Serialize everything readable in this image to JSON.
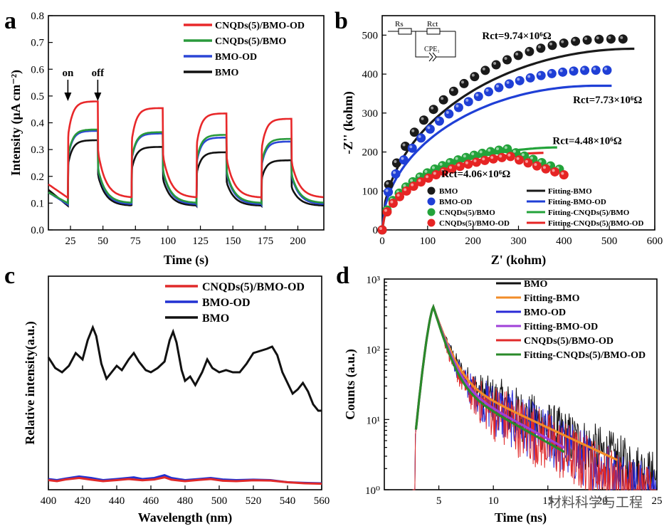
{
  "watermark": "材料科学与工程",
  "chart_data": [
    {
      "id": "a",
      "panel_label": "a",
      "type": "line",
      "xlabel": "Time (s)",
      "ylabel": "Intensity (μA cm⁻²)",
      "xlim": [
        8,
        220
      ],
      "ylim": [
        0,
        0.8
      ],
      "xticks": [
        25,
        50,
        75,
        100,
        125,
        150,
        175,
        200
      ],
      "yticks": [
        0.0,
        0.1,
        0.2,
        0.3,
        0.4,
        0.5,
        0.6,
        0.7,
        0.8
      ],
      "cycle_on_times": [
        23,
        72,
        122,
        172
      ],
      "cycle_off_times": [
        46,
        96,
        145,
        195
      ],
      "annotations": [
        {
          "text": "on",
          "x": 23,
          "y": 0.49
        },
        {
          "text": "off",
          "x": 46,
          "y": 0.49
        }
      ],
      "series": [
        {
          "name": "CNQDs(5)/BMO-OD",
          "color": "#e8282a",
          "dark": [
            0.17,
            0.12
          ],
          "peaks": [
            0.48,
            0.455,
            0.435,
            0.415
          ]
        },
        {
          "name": "CNQDs(5)/BMO",
          "color": "#2a9a3c",
          "dark": [
            0.14,
            0.1
          ],
          "peaks": [
            0.375,
            0.365,
            0.355,
            0.34
          ]
        },
        {
          "name": "BMO-OD",
          "color": "#2b46d6",
          "dark": [
            0.14,
            0.095
          ],
          "peaks": [
            0.37,
            0.36,
            0.345,
            0.33
          ]
        },
        {
          "name": "BMO",
          "color": "#111111",
          "dark": [
            0.15,
            0.09
          ],
          "peaks": [
            0.335,
            0.31,
            0.29,
            0.26
          ]
        }
      ]
    },
    {
      "id": "b",
      "panel_label": "b",
      "type": "scatter",
      "xlabel": "Z' (kohm)",
      "ylabel": "-Z'' (kohm)",
      "xlim": [
        0,
        600
      ],
      "ylim": [
        0,
        550
      ],
      "xticks": [
        0,
        100,
        200,
        300,
        400,
        500,
        600
      ],
      "yticks": [
        0,
        100,
        200,
        300,
        400,
        500
      ],
      "circuit_labels": {
        "rs": "Rs",
        "rct": "Rct",
        "cpe": "CPE₁"
      },
      "series": [
        {
          "name": "BMO",
          "fit_name": "Fitting-BMO",
          "color": "#1a1a1a",
          "r": 530,
          "h": 490,
          "fit_r": 555,
          "fit_h": 465,
          "fit_end": 555,
          "rct_text": "Rct=9.74×10⁶Ω",
          "rct_x": 220,
          "rct_y": 490
        },
        {
          "name": "BMO-OD",
          "fit_name": "Fitting-BMO-OD",
          "color": "#1f3fd6",
          "r": 495,
          "h": 410,
          "fit_r": 470,
          "fit_h": 370,
          "fit_end": 505,
          "rct_text": "Rct=7.73×10⁶Ω",
          "rct_x": 420,
          "rct_y": 325
        },
        {
          "name": "CNQDs(5)/BMO",
          "fit_name": "Fitting-CNQDs(5)/BMO",
          "color": "#23a33a",
          "r": 390,
          "h": 215,
          "fit_r": 400,
          "fit_h": 212,
          "fit_end": 385,
          "rct_text": "Rct=4.48×10⁶Ω",
          "rct_x": 375,
          "rct_y": 220
        },
        {
          "name": "CNQDs(5)/BMO-OD",
          "fit_name": "Fitting-CNQDs(5)/BMO-OD",
          "color": "#e62424",
          "r": 400,
          "h": 195,
          "fit_r": 370,
          "fit_h": 198,
          "fit_end": 355,
          "rct_text": "Rct=4.06×10⁶Ω",
          "rct_x": 130,
          "rct_y": 135
        }
      ]
    },
    {
      "id": "c",
      "panel_label": "c",
      "type": "line",
      "xlabel": "Wavelength (nm)",
      "ylabel": "Relative intensity(a.u.)",
      "xlim": [
        400,
        560
      ],
      "xticks": [
        400,
        420,
        440,
        460,
        480,
        500,
        520,
        540,
        560
      ],
      "series": [
        {
          "name": "CNQDs(5)/BMO-OD",
          "color": "#e02a2a",
          "points": [
            [
              400,
              0.045
            ],
            [
              405,
              0.04
            ],
            [
              410,
              0.048
            ],
            [
              418,
              0.055
            ],
            [
              425,
              0.047
            ],
            [
              432,
              0.04
            ],
            [
              440,
              0.045
            ],
            [
              447,
              0.05
            ],
            [
              455,
              0.044
            ],
            [
              462,
              0.048
            ],
            [
              468,
              0.058
            ],
            [
              472,
              0.047
            ],
            [
              480,
              0.04
            ],
            [
              488,
              0.046
            ],
            [
              495,
              0.05
            ],
            [
              502,
              0.042
            ],
            [
              510,
              0.04
            ],
            [
              520,
              0.044
            ],
            [
              530,
              0.043
            ],
            [
              540,
              0.035
            ],
            [
              550,
              0.03
            ],
            [
              560,
              0.028
            ]
          ]
        },
        {
          "name": "BMO-OD",
          "color": "#2232d2",
          "points": [
            [
              400,
              0.05
            ],
            [
              405,
              0.045
            ],
            [
              410,
              0.052
            ],
            [
              418,
              0.062
            ],
            [
              425,
              0.055
            ],
            [
              432,
              0.045
            ],
            [
              440,
              0.05
            ],
            [
              450,
              0.058
            ],
            [
              455,
              0.05
            ],
            [
              462,
              0.055
            ],
            [
              468,
              0.068
            ],
            [
              472,
              0.055
            ],
            [
              480,
              0.045
            ],
            [
              488,
              0.05
            ],
            [
              495,
              0.055
            ],
            [
              502,
              0.048
            ],
            [
              510,
              0.045
            ],
            [
              520,
              0.047
            ],
            [
              530,
              0.045
            ],
            [
              540,
              0.035
            ],
            [
              550,
              0.032
            ],
            [
              560,
              0.03
            ]
          ]
        },
        {
          "name": "BMO",
          "color": "#111111",
          "points": [
            [
              400,
              0.62
            ],
            [
              404,
              0.57
            ],
            [
              408,
              0.55
            ],
            [
              412,
              0.58
            ],
            [
              416,
              0.64
            ],
            [
              420,
              0.61
            ],
            [
              423,
              0.7
            ],
            [
              426,
              0.76
            ],
            [
              428,
              0.72
            ],
            [
              431,
              0.59
            ],
            [
              434,
              0.52
            ],
            [
              437,
              0.55
            ],
            [
              440,
              0.58
            ],
            [
              443,
              0.56
            ],
            [
              447,
              0.61
            ],
            [
              450,
              0.64
            ],
            [
              453,
              0.6
            ],
            [
              457,
              0.56
            ],
            [
              460,
              0.55
            ],
            [
              464,
              0.57
            ],
            [
              468,
              0.6
            ],
            [
              471,
              0.7
            ],
            [
              473,
              0.74
            ],
            [
              475,
              0.69
            ],
            [
              478,
              0.56
            ],
            [
              480,
              0.51
            ],
            [
              483,
              0.53
            ],
            [
              486,
              0.49
            ],
            [
              490,
              0.55
            ],
            [
              493,
              0.61
            ],
            [
              496,
              0.57
            ],
            [
              500,
              0.55
            ],
            [
              504,
              0.56
            ],
            [
              508,
              0.55
            ],
            [
              512,
              0.55
            ],
            [
              516,
              0.59
            ],
            [
              520,
              0.64
            ],
            [
              524,
              0.65
            ],
            [
              528,
              0.66
            ],
            [
              531,
              0.67
            ],
            [
              534,
              0.63
            ],
            [
              537,
              0.55
            ],
            [
              540,
              0.5
            ],
            [
              543,
              0.45
            ],
            [
              546,
              0.47
            ],
            [
              549,
              0.5
            ],
            [
              552,
              0.46
            ],
            [
              555,
              0.4
            ],
            [
              558,
              0.37
            ],
            [
              560,
              0.37
            ]
          ]
        }
      ]
    },
    {
      "id": "d",
      "panel_label": "d",
      "type": "line",
      "xlabel": "Time (ns)",
      "ylabel": "Counts (a.u.)",
      "xlim": [
        0,
        25
      ],
      "ylog_decades": [
        0,
        3
      ],
      "xticks": [
        5,
        10,
        15,
        20,
        25
      ],
      "yticks_labels": [
        "10⁰",
        "10¹",
        "10²",
        "10³"
      ],
      "peak_time": 4.5,
      "peak_counts": 400,
      "series": [
        {
          "name": "BMO",
          "color": "#111111",
          "kind": "data",
          "tau1": 0.9,
          "tau2": 6.0,
          "a2": 0.11,
          "noise": 0.38,
          "end": 25
        },
        {
          "name": "Fitting-BMO",
          "color": "#f28c28",
          "kind": "fit",
          "tau1": 0.9,
          "tau2": 6.0,
          "a2": 0.11,
          "end": 21.5
        },
        {
          "name": "BMO-OD",
          "color": "#2a2ad6",
          "kind": "data",
          "tau1": 0.85,
          "tau2": 5.2,
          "a2": 0.1,
          "noise": 0.42,
          "end": 25
        },
        {
          "name": "Fitting-BMO-OD",
          "color": "#a040d8",
          "kind": "fit",
          "tau1": 0.85,
          "tau2": 5.2,
          "a2": 0.1,
          "end": 16.5
        },
        {
          "name": "CNQDs(5)/BMO-OD",
          "color": "#e02a2a",
          "kind": "data",
          "tau1": 0.8,
          "tau2": 5.0,
          "a2": 0.095,
          "noise": 0.45,
          "end": 25
        },
        {
          "name": "Fitting-CNQDs(5)/BMO-OD",
          "color": "#2a8a2a",
          "kind": "fit",
          "tau1": 0.8,
          "tau2": 5.0,
          "a2": 0.095,
          "end": 16.5
        }
      ]
    }
  ]
}
